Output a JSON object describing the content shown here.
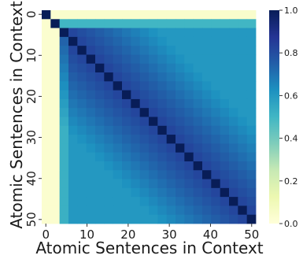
{
  "chart_data": {
    "type": "heatmap",
    "xlabel": "Atomic Sentences in Context",
    "ylabel": "Atomic Sentences in Context",
    "n": 24,
    "x_ticks": [
      {
        "label": "0",
        "index": 0
      },
      {
        "label": "10",
        "index": 5
      },
      {
        "label": "20",
        "index": 10
      },
      {
        "label": "30",
        "index": 15
      },
      {
        "label": "40",
        "index": 20
      },
      {
        "label": "50",
        "index": 25
      }
    ],
    "y_ticks": [
      {
        "label": "0",
        "index": 0
      },
      {
        "label": "10",
        "index": 5
      },
      {
        "label": "20",
        "index": 10
      },
      {
        "label": "30",
        "index": 15
      },
      {
        "label": "40",
        "index": 20
      },
      {
        "label": "50",
        "index": 25
      }
    ],
    "colorbar": {
      "colormap": "YlGnBu",
      "min": 0.0,
      "max": 1.0,
      "ticks": [
        "0.0",
        "0.2",
        "0.4",
        "0.6",
        "0.8",
        "1.0"
      ]
    },
    "pattern": {
      "diagonal": 1.0,
      "first_two_columns": 0.03,
      "first_row": 0.04,
      "second_row": 0.5,
      "near_diagonal": 0.82,
      "far_from_diagonal": 0.6
    }
  }
}
